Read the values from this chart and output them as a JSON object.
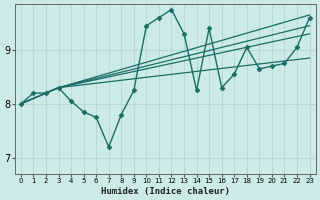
{
  "xlabel": "Humidex (Indice chaleur)",
  "xlim": [
    -0.5,
    23.5
  ],
  "ylim": [
    6.7,
    9.85
  ],
  "yticks": [
    7,
    8,
    9
  ],
  "xticks": [
    0,
    1,
    2,
    3,
    4,
    5,
    6,
    7,
    8,
    9,
    10,
    11,
    12,
    13,
    14,
    15,
    16,
    17,
    18,
    19,
    20,
    21,
    22,
    23
  ],
  "bg_color": "#cceae8",
  "grid_color": "#b0d8d4",
  "line_color": "#1a6e65",
  "figsize": [
    3.2,
    2.0
  ],
  "dpi": 100,
  "lines": [
    {
      "x": [
        0,
        1,
        2,
        3,
        4,
        5,
        6,
        7,
        8,
        9,
        10,
        11,
        12,
        13,
        14,
        15,
        16,
        17,
        18,
        19,
        20,
        21,
        22,
        23
      ],
      "y": [
        8.0,
        8.2,
        8.2,
        8.3,
        8.05,
        7.85,
        7.75,
        7.2,
        7.8,
        8.25,
        9.45,
        9.6,
        9.75,
        9.3,
        8.25,
        9.4,
        8.3,
        8.55,
        9.05,
        8.65,
        8.7,
        8.75,
        9.05,
        9.6
      ],
      "marker": "D",
      "markersize": 2.5,
      "linewidth": 1.0
    },
    {
      "x": [
        0,
        3,
        23
      ],
      "y": [
        8.0,
        8.3,
        9.65
      ],
      "marker": null,
      "markersize": 0,
      "linewidth": 0.9
    },
    {
      "x": [
        0,
        3,
        23
      ],
      "y": [
        8.0,
        8.3,
        9.45
      ],
      "marker": null,
      "markersize": 0,
      "linewidth": 0.9
    },
    {
      "x": [
        0,
        3,
        23
      ],
      "y": [
        8.0,
        8.3,
        9.3
      ],
      "marker": null,
      "markersize": 0,
      "linewidth": 0.9
    },
    {
      "x": [
        0,
        3,
        23
      ],
      "y": [
        8.0,
        8.3,
        8.85
      ],
      "marker": null,
      "markersize": 0,
      "linewidth": 0.9
    }
  ]
}
